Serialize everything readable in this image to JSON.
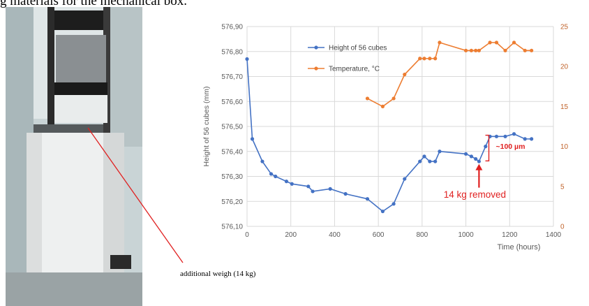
{
  "caption_top": "g materials for the mechanical box.",
  "photo_caption": "additional weigh (14 kg)",
  "chart_data": {
    "type": "line",
    "xlabel": "Time (hours)",
    "ylabel": "Height of 56 cubes (mm)",
    "y2label": "Temperature °C",
    "xlim": [
      0,
      1400
    ],
    "ylim": [
      576.1,
      576.9
    ],
    "y2lim": [
      0,
      25
    ],
    "x_ticks": [
      "0",
      "200",
      "400",
      "600",
      "800",
      "1000",
      "1200",
      "1400"
    ],
    "y_ticks": [
      "576,10",
      "576,20",
      "576,30",
      "576,40",
      "576,50",
      "576,60",
      "576,70",
      "576,80",
      "576,90"
    ],
    "y2_ticks": [
      "0",
      "5",
      "10",
      "15",
      "20",
      "25"
    ],
    "grid": true,
    "legend_position": "top-left",
    "series": [
      {
        "name": "Height of 56 cubes",
        "axis": "left",
        "color": "#4472C4",
        "points": [
          [
            0,
            576.77
          ],
          [
            24,
            576.45
          ],
          [
            70,
            576.36
          ],
          [
            110,
            576.31
          ],
          [
            130,
            576.3
          ],
          [
            180,
            576.28
          ],
          [
            205,
            576.27
          ],
          [
            280,
            576.26
          ],
          [
            300,
            576.24
          ],
          [
            380,
            576.25
          ],
          [
            450,
            576.23
          ],
          [
            550,
            576.21
          ],
          [
            620,
            576.16
          ],
          [
            670,
            576.19
          ],
          [
            720,
            576.29
          ],
          [
            790,
            576.36
          ],
          [
            810,
            576.38
          ],
          [
            835,
            576.36
          ],
          [
            860,
            576.36
          ],
          [
            880,
            576.4
          ],
          [
            1000,
            576.39
          ],
          [
            1025,
            576.38
          ],
          [
            1045,
            576.37
          ],
          [
            1060,
            576.36
          ],
          [
            1090,
            576.42
          ],
          [
            1110,
            576.46
          ],
          [
            1140,
            576.46
          ],
          [
            1180,
            576.46
          ],
          [
            1220,
            576.47
          ],
          [
            1270,
            576.45
          ],
          [
            1300,
            576.45
          ]
        ]
      },
      {
        "name": "Temperature, °C",
        "axis": "right",
        "color": "#ED7D31",
        "points": [
          [
            550,
            16
          ],
          [
            620,
            15
          ],
          [
            670,
            16
          ],
          [
            720,
            19
          ],
          [
            790,
            21
          ],
          [
            810,
            21
          ],
          [
            835,
            21
          ],
          [
            860,
            21
          ],
          [
            880,
            23
          ],
          [
            1000,
            22
          ],
          [
            1025,
            22
          ],
          [
            1045,
            22
          ],
          [
            1060,
            22
          ],
          [
            1110,
            23
          ],
          [
            1140,
            23
          ],
          [
            1180,
            22
          ],
          [
            1220,
            23
          ],
          [
            1270,
            22
          ],
          [
            1300,
            22
          ]
        ]
      }
    ],
    "annotations": [
      {
        "text": "~100 µm",
        "color": "#E02020"
      },
      {
        "text": "14 kg removed",
        "color": "#E02020"
      }
    ]
  }
}
